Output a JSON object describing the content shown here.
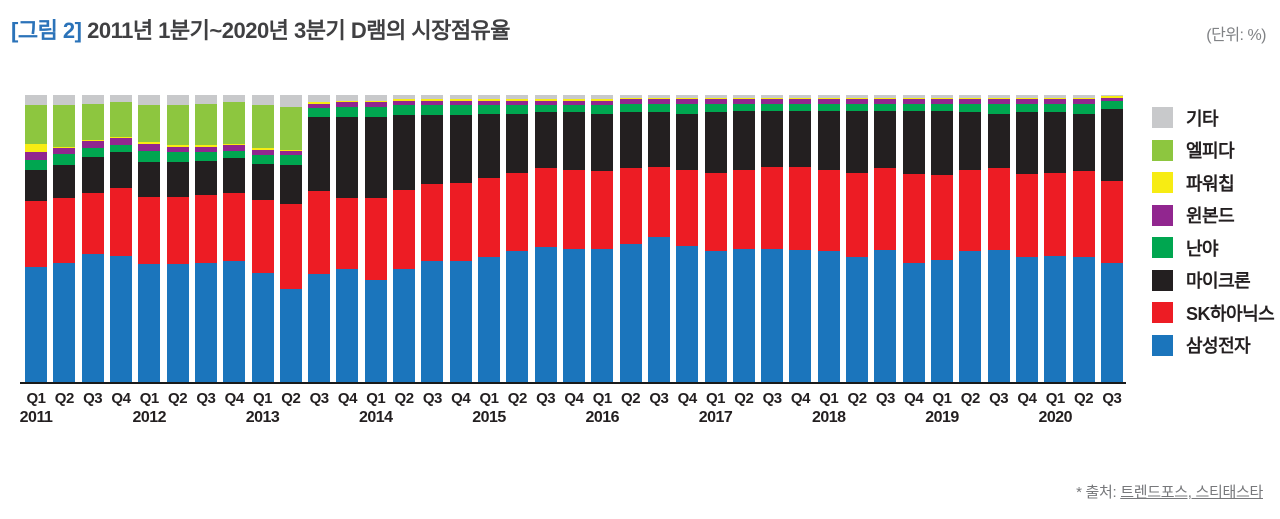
{
  "header": {
    "title_tag": "[그림 2]",
    "title_text": " 2011년 1분기~2020년 3분기 D램의 시장점유율",
    "unit_label": "(단위: %)"
  },
  "footer": {
    "prefix": "* 출처: ",
    "sources": "트렌드포스, 스티태스타"
  },
  "chart_data": {
    "type": "bar",
    "stacked": true,
    "title": "2011년 1분기~2020년 3분기 D램의 시장점유율",
    "unit": "%",
    "ylim": [
      0,
      100
    ],
    "grid": false,
    "legend_position": "right",
    "quarters": [
      {
        "q": "Q1",
        "year": "2011"
      },
      {
        "q": "Q2",
        "year": ""
      },
      {
        "q": "Q3",
        "year": ""
      },
      {
        "q": "Q4",
        "year": ""
      },
      {
        "q": "Q1",
        "year": "2012"
      },
      {
        "q": "Q2",
        "year": ""
      },
      {
        "q": "Q3",
        "year": ""
      },
      {
        "q": "Q4",
        "year": ""
      },
      {
        "q": "Q1",
        "year": "2013"
      },
      {
        "q": "Q2",
        "year": ""
      },
      {
        "q": "Q3",
        "year": ""
      },
      {
        "q": "Q4",
        "year": ""
      },
      {
        "q": "Q1",
        "year": "2014"
      },
      {
        "q": "Q2",
        "year": ""
      },
      {
        "q": "Q3",
        "year": ""
      },
      {
        "q": "Q4",
        "year": ""
      },
      {
        "q": "Q1",
        "year": "2015"
      },
      {
        "q": "Q2",
        "year": ""
      },
      {
        "q": "Q3",
        "year": ""
      },
      {
        "q": "Q4",
        "year": ""
      },
      {
        "q": "Q1",
        "year": "2016"
      },
      {
        "q": "Q2",
        "year": ""
      },
      {
        "q": "Q3",
        "year": ""
      },
      {
        "q": "Q4",
        "year": ""
      },
      {
        "q": "Q1",
        "year": "2017"
      },
      {
        "q": "Q2",
        "year": ""
      },
      {
        "q": "Q3",
        "year": ""
      },
      {
        "q": "Q4",
        "year": ""
      },
      {
        "q": "Q1",
        "year": "2018"
      },
      {
        "q": "Q2",
        "year": ""
      },
      {
        "q": "Q3",
        "year": ""
      },
      {
        "q": "Q4",
        "year": ""
      },
      {
        "q": "Q1",
        "year": "2019"
      },
      {
        "q": "Q2",
        "year": ""
      },
      {
        "q": "Q3",
        "year": ""
      },
      {
        "q": "Q4",
        "year": ""
      },
      {
        "q": "Q1",
        "year": "2020"
      },
      {
        "q": "Q2",
        "year": ""
      },
      {
        "q": "Q3",
        "year": ""
      }
    ],
    "series": [
      {
        "id": "samsung",
        "name": "삼성전자",
        "color": "#1b75bc",
        "values": [
          40,
          41.5,
          44.5,
          44,
          41,
          41,
          41.5,
          42,
          38,
          32.5,
          37.5,
          39.5,
          35.5,
          39.5,
          42,
          42,
          43.5,
          45.5,
          47,
          46.5,
          46.5,
          48,
          50.5,
          47.5,
          45.5,
          46.5,
          46.5,
          46,
          45.5,
          43.5,
          46,
          41.5,
          42.5,
          45.5,
          46,
          43.5,
          44,
          43.5,
          41.5
        ]
      },
      {
        "id": "sk-hynix",
        "name": "SK하아닉스",
        "color": "#ed1c24",
        "values": [
          23,
          22.5,
          21.5,
          23.5,
          23.5,
          23.5,
          23.5,
          24,
          25.5,
          29.5,
          29,
          24.5,
          28.5,
          27.5,
          27,
          27.5,
          27.5,
          27.5,
          27.5,
          27.5,
          27,
          26.5,
          24.5,
          26.5,
          27.5,
          27.5,
          28.5,
          29,
          28.5,
          29.5,
          28.5,
          31,
          29.5,
          28.5,
          28.5,
          29,
          29,
          30,
          28.5
        ]
      },
      {
        "id": "micron",
        "name": "마이크론",
        "color": "#231f20",
        "values": [
          11,
          11.5,
          12.5,
          12.5,
          12,
          12,
          12,
          12,
          12.5,
          13.5,
          26,
          28.5,
          28.5,
          26,
          24,
          23.5,
          22.5,
          20.5,
          19.5,
          20,
          20,
          19.5,
          19,
          19.5,
          21,
          20.5,
          19.5,
          19.5,
          20.5,
          21.5,
          20,
          22,
          22.5,
          20,
          19,
          21.5,
          21,
          20,
          25
        ]
      },
      {
        "id": "nanya",
        "name": "난야",
        "color": "#00a650",
        "values": [
          3.5,
          4,
          3,
          2.5,
          4,
          3.5,
          3,
          2.5,
          3,
          3.5,
          3,
          3.5,
          3.5,
          3.5,
          3.5,
          3.5,
          3,
          3,
          2.5,
          2.5,
          3,
          3,
          3,
          3.5,
          3,
          2.5,
          2.5,
          2.5,
          2.5,
          2.5,
          2.5,
          2.5,
          2.5,
          3,
          3.5,
          3,
          3,
          3.5,
          3
        ]
      },
      {
        "id": "winbond",
        "name": "윈본드",
        "color": "#91268f",
        "values": [
          2.5,
          2,
          2.5,
          2.5,
          2.5,
          2,
          2,
          2,
          2,
          1.5,
          1.5,
          1.5,
          1.5,
          1.5,
          1.5,
          1.5,
          1.5,
          1.5,
          1.5,
          1.5,
          1.5,
          1.5,
          1.5,
          1.5,
          1.5,
          1.5,
          1.5,
          1.5,
          1.5,
          1.5,
          1.5,
          1.5,
          1.5,
          1.5,
          1.5,
          1.5,
          1.5,
          1.5,
          1
        ]
      },
      {
        "id": "powerchip",
        "name": "파워칩",
        "color": "#f7ec13",
        "values": [
          3,
          0.5,
          0.5,
          0.5,
          0.5,
          0.5,
          0.5,
          0.5,
          0.5,
          0.5,
          0.5,
          0.5,
          0.5,
          0.5,
          0.5,
          0.5,
          0.5,
          0.5,
          0.5,
          0.5,
          0.5,
          0.5,
          0.5,
          0.5,
          0.5,
          0.5,
          0.5,
          0.5,
          0.5,
          0.5,
          0.5,
          0.5,
          0.5,
          0.5,
          0.5,
          0.5,
          0.5,
          0.5,
          0.5
        ]
      },
      {
        "id": "elpida",
        "name": "엘피다",
        "color": "#8dc63f",
        "values": [
          13.5,
          14.5,
          12.5,
          12,
          13,
          14,
          14.5,
          14.5,
          15,
          15,
          0,
          0,
          0,
          0,
          0,
          0,
          0,
          0,
          0,
          0,
          0,
          0,
          0,
          0,
          0,
          0,
          0,
          0,
          0,
          0,
          0,
          0,
          0,
          0,
          0,
          0,
          0,
          0,
          0
        ]
      },
      {
        "id": "others",
        "name": "기타",
        "color": "#c8c9cb",
        "values": [
          3.5,
          3.5,
          3,
          2.5,
          3.5,
          3.5,
          3,
          2.5,
          3.5,
          4,
          2.5,
          2,
          2,
          1.5,
          1.5,
          1.5,
          1.5,
          1.5,
          1.5,
          1.5,
          1.5,
          1,
          1,
          1,
          1,
          1,
          1,
          1,
          1,
          1,
          1,
          1,
          1,
          1,
          1,
          1,
          1,
          1,
          0.5
        ]
      }
    ]
  }
}
